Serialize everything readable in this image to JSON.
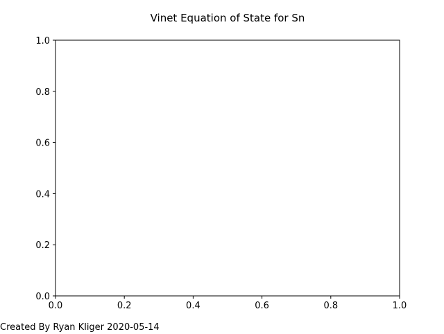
{
  "chart_data": {
    "type": "scatter",
    "title": "Vinet Equation of State for Sn",
    "xlabel": "",
    "ylabel": "",
    "xlim": [
      0.0,
      1.0
    ],
    "ylim": [
      0.0,
      1.0
    ],
    "x_ticks": [
      "0.0",
      "0.2",
      "0.4",
      "0.6",
      "0.8",
      "1.0"
    ],
    "y_ticks": [
      "0.0",
      "0.2",
      "0.4",
      "0.6",
      "0.8",
      "1.0"
    ],
    "series": [],
    "grid": false,
    "legend": "none"
  },
  "footer": {
    "text": "Created By Ryan Kliger 2020-05-14"
  },
  "colors": {
    "axes": "#000000",
    "background": "#ffffff",
    "text": "#000000"
  }
}
